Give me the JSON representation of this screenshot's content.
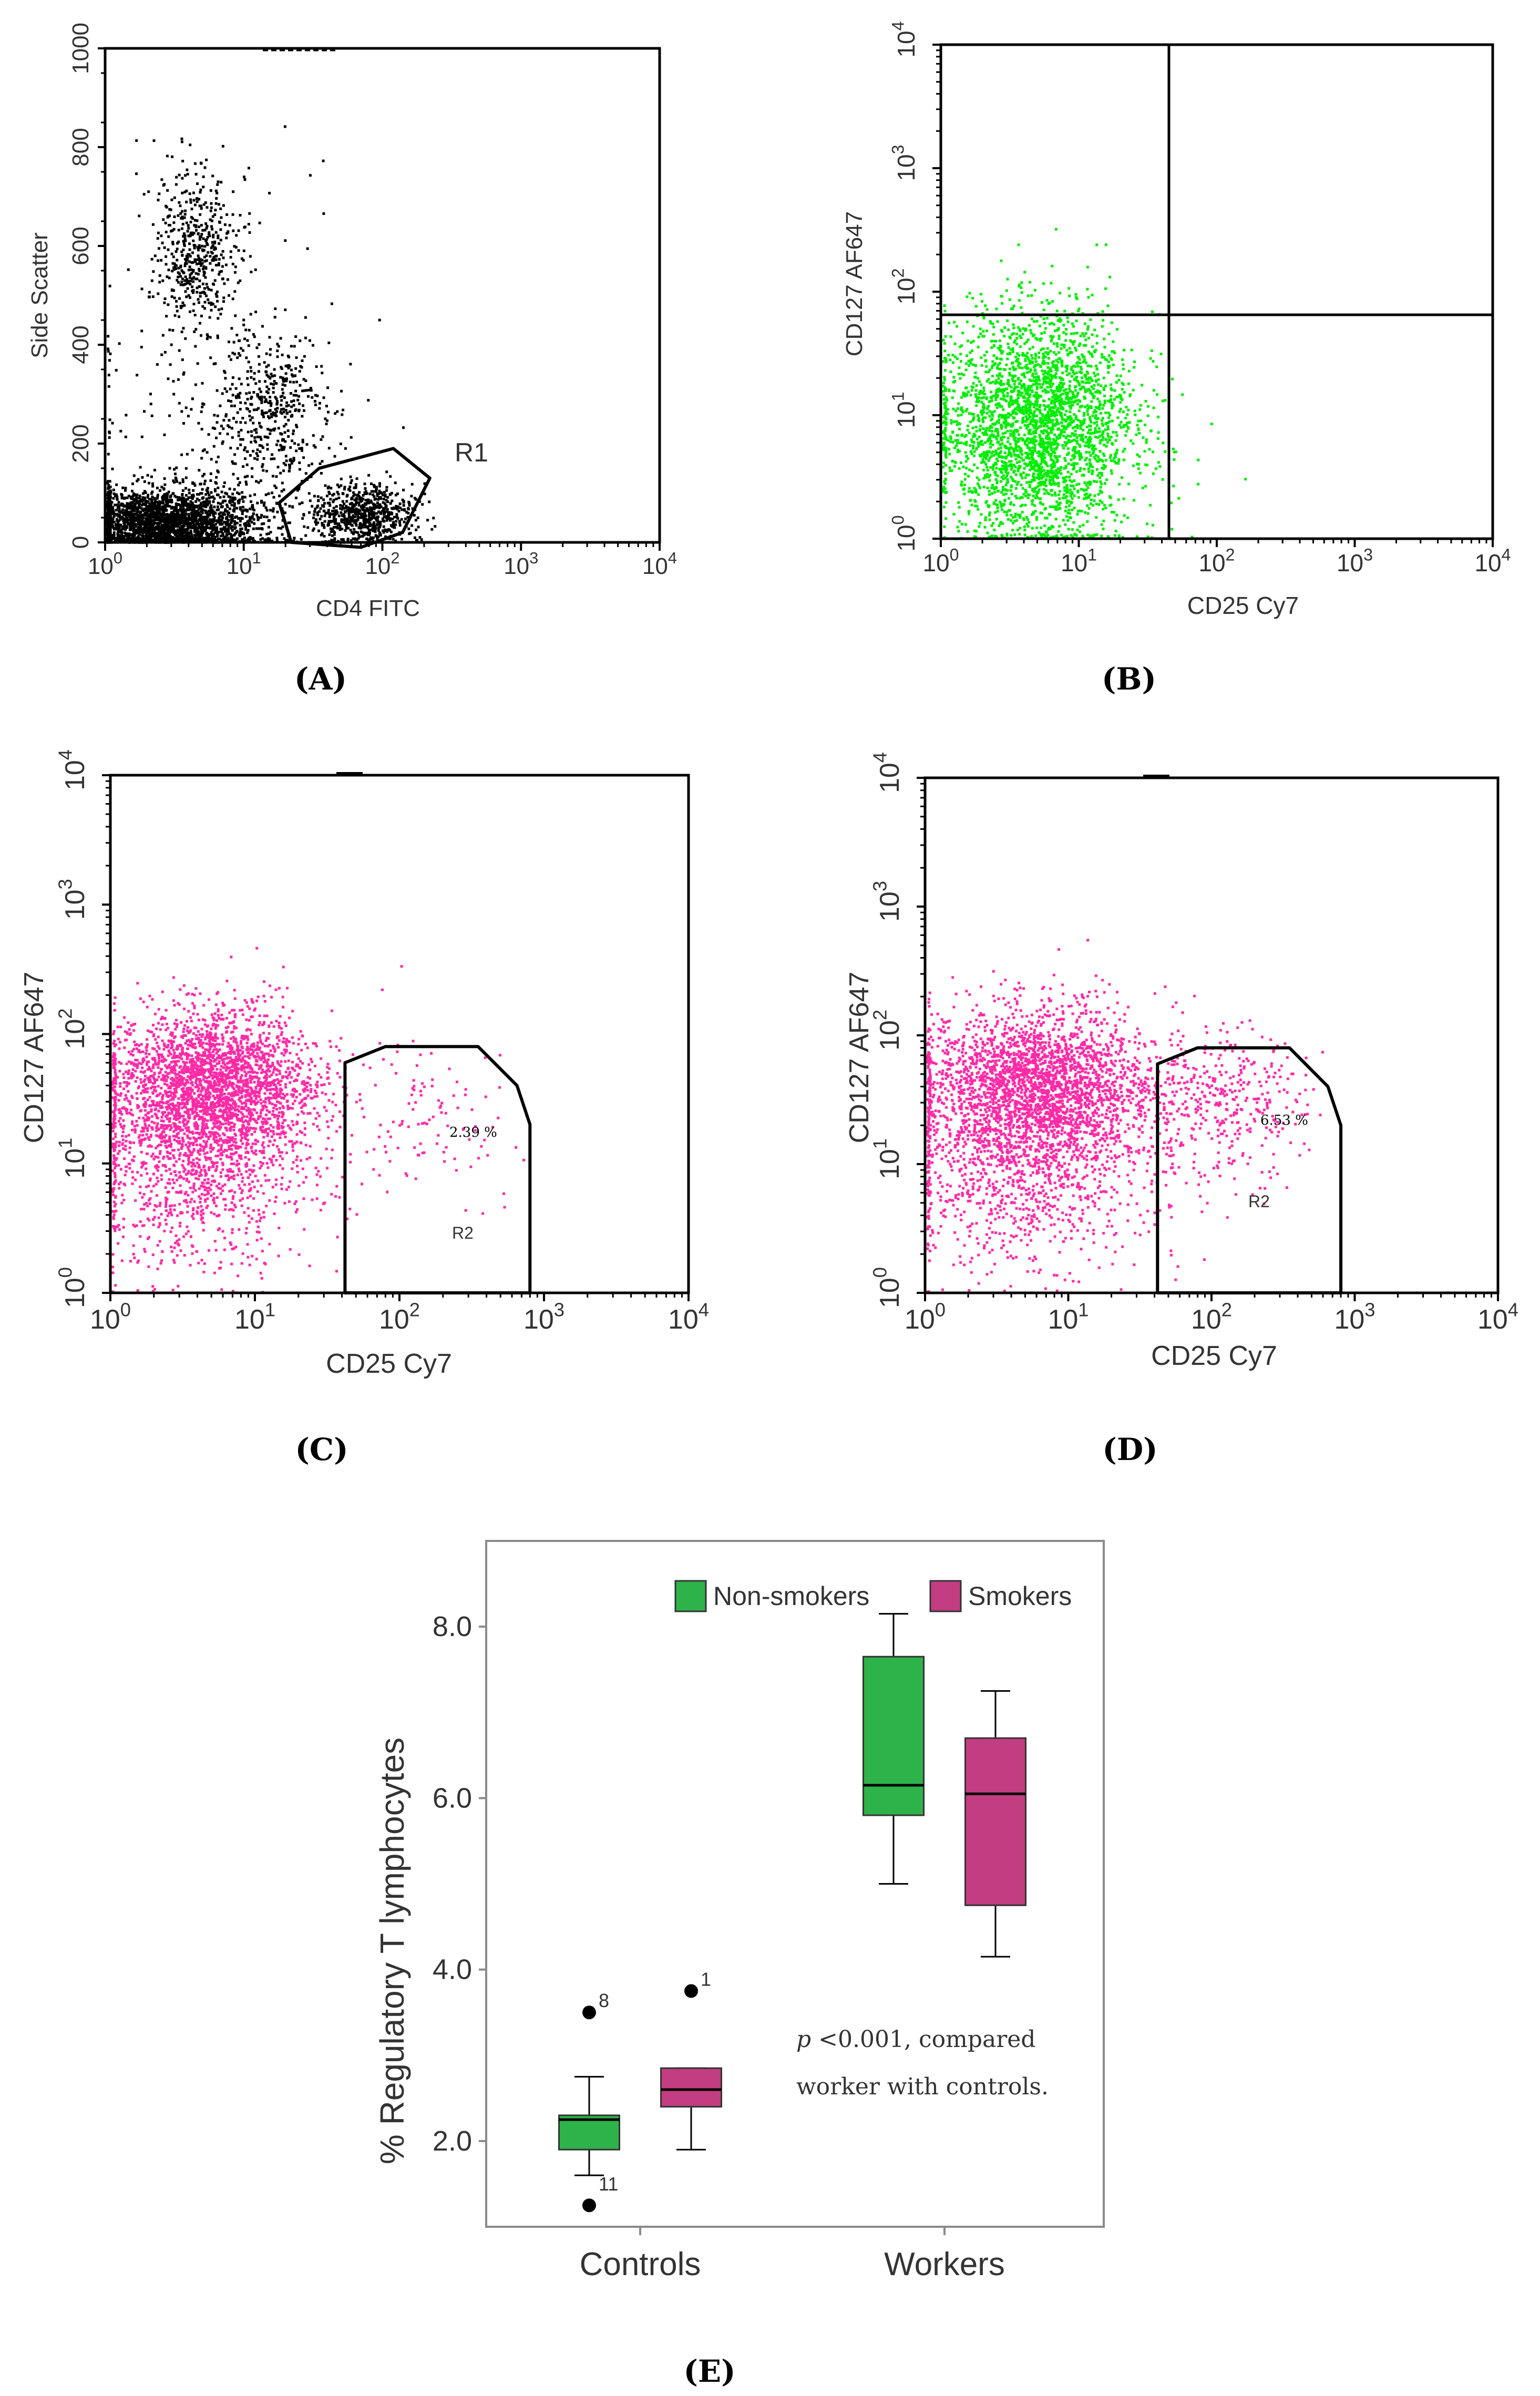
{
  "figure": {
    "panel_labels": {
      "A": "(A)",
      "B": "(B)",
      "C": "(C)",
      "D": "(D)",
      "E": "(E)"
    }
  },
  "colors": {
    "black_dots": "#000000",
    "green_dots": "#00ee00",
    "magenta_dots": "#ff2aa6",
    "box_green": "#2eb34a",
    "box_magenta": "#c23d82",
    "frame": "#000000"
  },
  "chart_data": [
    {
      "panel": "A",
      "type": "scatter",
      "title": "",
      "xlabel": "CD4 FITC",
      "ylabel": "Side Scatter",
      "xscale": "log",
      "xlim": [
        1,
        10000
      ],
      "ylim": [
        0,
        1000
      ],
      "x_ticks": [
        {
          "base": "10",
          "exp": "0"
        },
        {
          "base": "10",
          "exp": "1"
        },
        {
          "base": "10",
          "exp": "2"
        },
        {
          "base": "10",
          "exp": "3"
        },
        {
          "base": "10",
          "exp": "4"
        }
      ],
      "y_ticks": [
        0,
        200,
        400,
        600,
        800,
        1000
      ],
      "gates": [
        {
          "name": "R1",
          "label": "R1",
          "vertices": [
            [
              22,
              0
            ],
            [
              18,
              80
            ],
            [
              35,
              150
            ],
            [
              120,
              190
            ],
            [
              220,
              130
            ],
            [
              140,
              20
            ],
            [
              70,
              -10
            ]
          ]
        }
      ],
      "clusters": [
        {
          "name": "lymph-debris",
          "x_center": 2.5,
          "x_spread_log": 0.35,
          "y_center": 40,
          "y_spread": 35,
          "n": 2600
        },
        {
          "name": "granulocytes",
          "x_center": 4.5,
          "x_spread_log": 0.15,
          "y_center": 590,
          "y_spread": 80,
          "n": 500
        },
        {
          "name": "monocytes",
          "x_center": 16,
          "x_spread_log": 0.2,
          "y_center": 260,
          "y_spread": 80,
          "n": 420
        },
        {
          "name": "CD4-lymphocytes",
          "x_center": 70,
          "x_spread_log": 0.18,
          "y_center": 60,
          "y_spread": 30,
          "n": 700
        },
        {
          "name": "scatter",
          "x_center": 6,
          "x_spread_log": 0.5,
          "y_center": 250,
          "y_spread": 200,
          "n": 260
        }
      ]
    },
    {
      "panel": "B",
      "type": "scatter",
      "xlabel": "CD25 Cy7",
      "ylabel": "CD127  AF647",
      "xscale": "log",
      "yscale": "log",
      "xlim": [
        1,
        10000
      ],
      "ylim": [
        1,
        10000
      ],
      "x_ticks": [
        {
          "base": "10",
          "exp": "0"
        },
        {
          "base": "10",
          "exp": "1"
        },
        {
          "base": "10",
          "exp": "2"
        },
        {
          "base": "10",
          "exp": "3"
        },
        {
          "base": "10",
          "exp": "4"
        }
      ],
      "y_ticks": [
        {
          "base": "10",
          "exp": "0"
        },
        {
          "base": "10",
          "exp": "1"
        },
        {
          "base": "10",
          "exp": "2"
        },
        {
          "base": "10",
          "exp": "3"
        },
        {
          "base": "10",
          "exp": "4"
        }
      ],
      "quadrant_x": 45,
      "quadrant_y": 65,
      "clusters": [
        {
          "name": "population",
          "x_center": 5,
          "x_spread_log": 0.35,
          "y_center": 8,
          "y_spread_log": 0.45,
          "n": 6000
        }
      ]
    },
    {
      "panel": "C",
      "type": "scatter",
      "xlabel": "CD25 Cy7",
      "ylabel": "CD127 AF647",
      "xscale": "log",
      "yscale": "log",
      "xlim": [
        1,
        10000
      ],
      "ylim": [
        1,
        10000
      ],
      "x_ticks": [
        {
          "base": "10",
          "exp": "0"
        },
        {
          "base": "10",
          "exp": "1"
        },
        {
          "base": "10",
          "exp": "2"
        },
        {
          "base": "10",
          "exp": "3"
        },
        {
          "base": "10",
          "exp": "4"
        }
      ],
      "y_ticks": [
        {
          "base": "10",
          "exp": "0"
        },
        {
          "base": "10",
          "exp": "1"
        },
        {
          "base": "10",
          "exp": "2"
        },
        {
          "base": "10",
          "exp": "3"
        },
        {
          "base": "10",
          "exp": "4"
        }
      ],
      "gates": [
        {
          "name": "R2",
          "label": "R2",
          "percent_label": "2.39 %",
          "vertices": [
            [
              42,
              1
            ],
            [
              42,
              60
            ],
            [
              80,
              80
            ],
            [
              350,
              80
            ],
            [
              650,
              40
            ],
            [
              800,
              20
            ],
            [
              800,
              1
            ]
          ]
        }
      ],
      "clusters": [
        {
          "name": "main",
          "x_center": 5,
          "x_spread_log": 0.35,
          "y_center": 40,
          "y_spread_log": 0.28,
          "n": 6500
        },
        {
          "name": "low-tail",
          "x_center": 4,
          "x_spread_log": 0.4,
          "y_center": 8,
          "y_spread_log": 0.35,
          "n": 900
        },
        {
          "name": "treg",
          "x_center": 150,
          "x_spread_log": 0.3,
          "y_center": 25,
          "y_spread_log": 0.3,
          "n": 110
        }
      ]
    },
    {
      "panel": "D",
      "type": "scatter",
      "xlabel": "CD25 Cy7",
      "ylabel": "CD127 AF647",
      "xscale": "log",
      "yscale": "log",
      "xlim": [
        1,
        10000
      ],
      "ylim": [
        1,
        10000
      ],
      "x_ticks": [
        {
          "base": "10",
          "exp": "0"
        },
        {
          "base": "10",
          "exp": "1"
        },
        {
          "base": "10",
          "exp": "2"
        },
        {
          "base": "10",
          "exp": "3"
        },
        {
          "base": "10",
          "exp": "4"
        }
      ],
      "y_ticks": [
        {
          "base": "10",
          "exp": "0"
        },
        {
          "base": "10",
          "exp": "1"
        },
        {
          "base": "10",
          "exp": "2"
        },
        {
          "base": "10",
          "exp": "3"
        },
        {
          "base": "10",
          "exp": "4"
        }
      ],
      "gates": [
        {
          "name": "R2",
          "label": "R2",
          "percent_label": "6.53 %",
          "vertices": [
            [
              42,
              1
            ],
            [
              42,
              60
            ],
            [
              80,
              80
            ],
            [
              350,
              80
            ],
            [
              650,
              40
            ],
            [
              800,
              20
            ],
            [
              800,
              1
            ]
          ]
        }
      ],
      "clusters": [
        {
          "name": "main",
          "x_center": 6,
          "x_spread_log": 0.4,
          "y_center": 40,
          "y_spread_log": 0.3,
          "n": 5500
        },
        {
          "name": "low-tail",
          "x_center": 5,
          "x_spread_log": 0.45,
          "y_center": 8,
          "y_spread_log": 0.35,
          "n": 900
        },
        {
          "name": "treg",
          "x_center": 110,
          "x_spread_log": 0.3,
          "y_center": 30,
          "y_spread_log": 0.3,
          "n": 380
        }
      ]
    },
    {
      "panel": "E",
      "type": "box",
      "ylabel": "% Regulatory T lymphocytes",
      "categories": [
        "Controls",
        "Workers"
      ],
      "y_ticks": [
        "2.0",
        "4.0",
        "6.0",
        "8.0"
      ],
      "ylim": [
        1.0,
        9.0
      ],
      "legend": [
        {
          "name": "Non-smokers",
          "color": "#2eb34a"
        },
        {
          "name": "Smokers",
          "color": "#c23d82"
        }
      ],
      "series": [
        {
          "name": "Non-smokers",
          "boxes": [
            {
              "category": "Controls",
              "whisker_low": 1.6,
              "q1": 1.9,
              "median": 2.25,
              "q3": 2.3,
              "whisker_high": 2.75,
              "outliers": [
                {
                  "value": 3.5,
                  "label": "8"
                },
                {
                  "value": 1.25,
                  "label": "11"
                }
              ]
            },
            {
              "category": "Workers",
              "whisker_low": 5.0,
              "q1": 5.8,
              "median": 6.15,
              "q3": 7.65,
              "whisker_high": 8.15,
              "outliers": []
            }
          ]
        },
        {
          "name": "Smokers",
          "boxes": [
            {
              "category": "Controls",
              "whisker_low": 1.9,
              "q1": 2.4,
              "median": 2.6,
              "q3": 2.85,
              "whisker_high": 2.85,
              "outliers": [
                {
                  "value": 3.75,
                  "label": "1"
                }
              ]
            },
            {
              "category": "Workers",
              "whisker_low": 4.15,
              "q1": 4.75,
              "median": 6.05,
              "q3": 6.7,
              "whisker_high": 7.25,
              "outliers": []
            }
          ]
        }
      ],
      "annotation": {
        "p_symbol": "p",
        "line1": " <0.001, compared",
        "line2": "worker with controls."
      }
    }
  ]
}
